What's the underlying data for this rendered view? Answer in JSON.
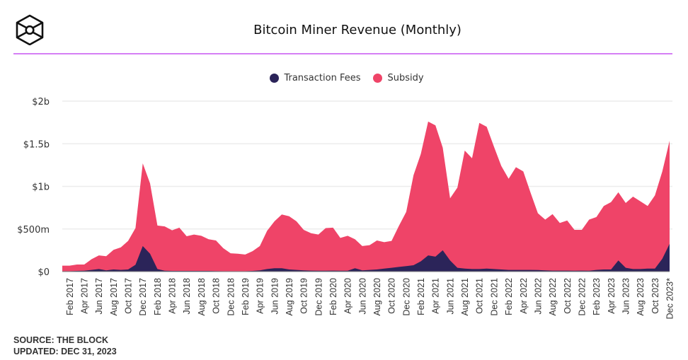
{
  "header": {
    "title": "Bitcoin Miner Revenue (Monthly)",
    "logo": "the-block-cube-logo"
  },
  "footer": {
    "source": "SOURCE: THE BLOCK",
    "updated": "UPDATED: DEC 31, 2023"
  },
  "colors": {
    "fees": "#2b2459",
    "subsidy": "#ef4468",
    "rule": "#d57ff5",
    "grid": "#ececec"
  },
  "chart_data": {
    "type": "area",
    "stacked": true,
    "title": "Bitcoin Miner Revenue (Monthly)",
    "xlabel": "",
    "ylabel": "",
    "unit": "USD millions",
    "ylim": [
      0,
      2000
    ],
    "grid": true,
    "legend_position": "top-center",
    "y_ticks": [
      {
        "value": 0,
        "label": "$0"
      },
      {
        "value": 500,
        "label": "$500m"
      },
      {
        "value": 1000,
        "label": "$1b"
      },
      {
        "value": 1500,
        "label": "$1.5b"
      },
      {
        "value": 2000,
        "label": "$2b"
      }
    ],
    "x_start": "Jan 2017",
    "x_tick_labels": [
      "Feb 2017",
      "Apr 2017",
      "Jun 2017",
      "Aug 2017",
      "Oct 2017",
      "Dec 2017",
      "Feb 2018",
      "Apr 2018",
      "Jun 2018",
      "Aug 2018",
      "Oct 2018",
      "Dec 2018",
      "Feb 2019",
      "Apr 2019",
      "Jun 2019",
      "Aug 2019",
      "Oct 2019",
      "Dec 2019",
      "Feb 2020",
      "Apr 2020",
      "Jun 2020",
      "Aug 2020",
      "Oct 2020",
      "Dec 2020",
      "Feb 2021",
      "Apr 2021",
      "Jun 2021",
      "Aug 2021",
      "Oct 2021",
      "Dec 2021",
      "Feb 2022",
      "Apr 2022",
      "Jun 2022",
      "Aug 2022",
      "Oct 2022",
      "Dec 2022",
      "Feb 2023",
      "Apr 2023",
      "Jun 2023",
      "Aug 2023",
      "Oct 2023",
      "Dec 2023*"
    ],
    "series": [
      {
        "name": "Transaction Fees",
        "values": [
          5,
          5,
          8,
          10,
          20,
          30,
          15,
          25,
          20,
          25,
          80,
          300,
          210,
          30,
          10,
          8,
          8,
          8,
          8,
          8,
          8,
          6,
          5,
          5,
          5,
          5,
          8,
          15,
          30,
          40,
          40,
          25,
          20,
          15,
          12,
          10,
          10,
          12,
          10,
          10,
          40,
          15,
          20,
          25,
          35,
          45,
          55,
          65,
          75,
          120,
          190,
          175,
          250,
          130,
          45,
          35,
          30,
          30,
          35,
          30,
          25,
          20,
          20,
          20,
          20,
          18,
          15,
          12,
          12,
          12,
          10,
          12,
          10,
          20,
          25,
          25,
          130,
          45,
          30,
          30,
          35,
          35,
          150,
          325
        ]
      },
      {
        "name": "Subsidy",
        "values": [
          65,
          65,
          75,
          73,
          125,
          160,
          165,
          230,
          265,
          335,
          430,
          970,
          825,
          510,
          520,
          477,
          507,
          407,
          427,
          412,
          372,
          359,
          270,
          210,
          205,
          195,
          232,
          285,
          450,
          550,
          630,
          625,
          570,
          475,
          438,
          425,
          500,
          503,
          385,
          410,
          340,
          285,
          290,
          340,
          310,
          315,
          480,
          635,
          1055,
          1260,
          1570,
          1540,
          1205,
          730,
          940,
          1385,
          1300,
          1715,
          1665,
          1435,
          1215,
          1070,
          1205,
          1155,
          905,
          667,
          595,
          663,
          558,
          588,
          480,
          478,
          600,
          620,
          745,
          790,
          800,
          760,
          850,
          795,
          735,
          860,
          1025,
          1210
        ]
      }
    ]
  }
}
